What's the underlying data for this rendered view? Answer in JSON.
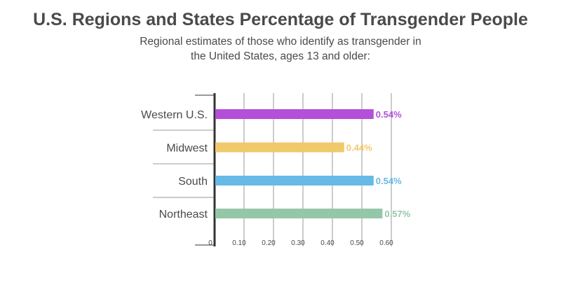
{
  "header": {
    "title": "U.S. Regions and States Percentage of Transgender People",
    "subtitle_line1": "Regional estimates of those who identify as transgender in",
    "subtitle_line2": "the United States, ages 13 and older:"
  },
  "chart_data": {
    "type": "bar",
    "orientation": "horizontal",
    "title": "U.S. Regions and States Percentage of Transgender People",
    "subtitle": "Regional estimates of those who identify as transgender in the United States, ages 13 and older:",
    "categories": [
      "Western U.S.",
      "Midwest",
      "South",
      "Northeast"
    ],
    "values": [
      0.54,
      0.44,
      0.54,
      0.57
    ],
    "value_labels": [
      "0.54%",
      "0.44%",
      "0.54%",
      "0.57%"
    ],
    "colors": [
      "#b44fd9",
      "#f0c96a",
      "#67b9e6",
      "#94c7a8"
    ],
    "xlim": [
      0,
      0.6
    ],
    "x_ticks": [
      0,
      0.1,
      0.2,
      0.3,
      0.4,
      0.5,
      0.6
    ],
    "x_tick_labels": [
      "0",
      "0.10",
      "0.20",
      "0.30",
      "0.40",
      "0.50",
      "0.60"
    ],
    "grid": true,
    "xlabel": "",
    "ylabel": ""
  },
  "colors": {
    "text": "#4a4a4a",
    "axis": "#333333",
    "grid": "#9a9a9a"
  }
}
